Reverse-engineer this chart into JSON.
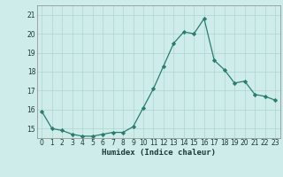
{
  "x": [
    0,
    1,
    2,
    3,
    4,
    5,
    6,
    7,
    8,
    9,
    10,
    11,
    12,
    13,
    14,
    15,
    16,
    17,
    18,
    19,
    20,
    21,
    22,
    23
  ],
  "y": [
    15.9,
    15.0,
    14.9,
    14.7,
    14.6,
    14.6,
    14.7,
    14.8,
    14.8,
    15.1,
    16.1,
    17.1,
    18.3,
    19.5,
    20.1,
    20.0,
    20.8,
    18.6,
    18.1,
    17.4,
    17.5,
    16.8,
    16.7,
    16.5
  ],
  "line_color": "#2a7d6e",
  "marker": "D",
  "marker_size": 2.2,
  "bg_color": "#ceecea",
  "grid_color": "#b0d4d0",
  "xlabel": "Humidex (Indice chaleur)",
  "ylim": [
    14.5,
    21.5
  ],
  "xlim": [
    -0.5,
    23.5
  ],
  "yticks": [
    15,
    16,
    17,
    18,
    19,
    20,
    21
  ],
  "xticks": [
    0,
    1,
    2,
    3,
    4,
    5,
    6,
    7,
    8,
    9,
    10,
    11,
    12,
    13,
    14,
    15,
    16,
    17,
    18,
    19,
    20,
    21,
    22,
    23
  ],
  "tick_fontsize": 5.5,
  "xlabel_fontsize": 6.5
}
